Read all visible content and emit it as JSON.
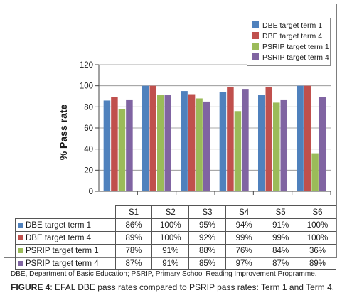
{
  "chart_data": {
    "type": "bar",
    "categories": [
      "S1",
      "S2",
      "S3",
      "S4",
      "S5",
      "S6"
    ],
    "series": [
      {
        "name": "DBE target term 1",
        "color": "#4f81bd",
        "values": [
          86,
          100,
          95,
          94,
          91,
          100
        ],
        "labels": [
          "86%",
          "100%",
          "95%",
          "94%",
          "91%",
          "100%"
        ]
      },
      {
        "name": "DBE target term 4",
        "color": "#c0504d",
        "values": [
          89,
          100,
          92,
          99,
          99,
          100
        ],
        "labels": [
          "89%",
          "100%",
          "92%",
          "99%",
          "99%",
          "100%"
        ]
      },
      {
        "name": "PSRIP target term 1",
        "color": "#9bbb59",
        "values": [
          78,
          91,
          88,
          76,
          84,
          36
        ],
        "labels": [
          "78%",
          "91%",
          "88%",
          "76%",
          "84%",
          "36%"
        ]
      },
      {
        "name": "PSRIP target term 4",
        "color": "#8064a2",
        "values": [
          87,
          91,
          85,
          97,
          87,
          89
        ],
        "labels": [
          "87%",
          "91%",
          "85%",
          "97%",
          "87%",
          "89%"
        ]
      }
    ],
    "ylabel": "% Pass rate",
    "ylim": [
      0,
      120
    ],
    "yticks": [
      0,
      20,
      40,
      60,
      80,
      100,
      120
    ],
    "grid": true,
    "legend": "top-right",
    "data_table": true
  },
  "note": "DBE, Department of Basic Education; PSRIP, Primary School Reading Improvement Programme.",
  "caption": {
    "label": "FIGURE 4",
    "text": ": EFAL DBE pass rates compared to PSRIP pass rates: Term 1 and Term 4."
  }
}
